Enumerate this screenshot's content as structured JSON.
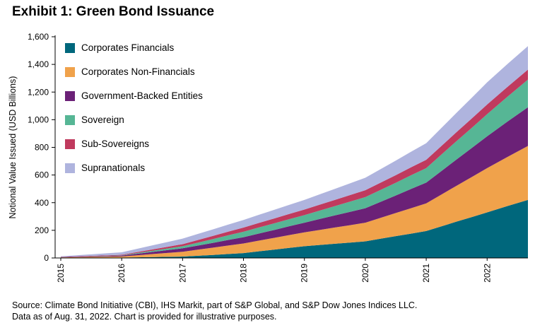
{
  "title": "Exhibit 1: Green Bond Issuance",
  "source_line1": "Source: Climate Bond Initiative (CBI), IHS Markit, part of S&P Global, and S&P Dow Jones Indices LLC.",
  "source_line2": "Data as of Aug. 31, 2022.  Chart is provided for illustrative purposes.",
  "chart_data": {
    "type": "area",
    "stacked": true,
    "title": "Exhibit 1: Green Bond Issuance",
    "ylabel": "Notional Value Issued (USD Billions)",
    "xlabel": "",
    "ylim": [
      0,
      1600
    ],
    "ytick_interval": 200,
    "legend_position": "top-left-inside",
    "grid": false,
    "xticks": [
      "2015",
      "2016",
      "2017",
      "2018",
      "2019",
      "2020",
      "2021",
      "2022"
    ],
    "xtick_values": [
      2015,
      2016,
      2017,
      2018,
      2019,
      2020,
      2021,
      2022
    ],
    "x": [
      2015,
      2015.25,
      2015.5,
      2015.75,
      2016,
      2016.25,
      2016.5,
      2016.75,
      2017,
      2017.25,
      2017.5,
      2017.75,
      2018,
      2018.25,
      2018.5,
      2018.75,
      2019,
      2019.25,
      2019.5,
      2019.75,
      2020,
      2020.25,
      2020.5,
      2020.75,
      2021,
      2021.25,
      2021.5,
      2021.75,
      2022,
      2022.33,
      2022.67
    ],
    "series": [
      {
        "name": "Corporates Financials",
        "color": "#00677C",
        "values": [
          1,
          1.5,
          2,
          2.5,
          3,
          4.75,
          6.5,
          8.25,
          10,
          16,
          22,
          29,
          35,
          48,
          60,
          73,
          85,
          94,
          103,
          111,
          120,
          139,
          158,
          176,
          195,
          229,
          263,
          296,
          330,
          375,
          420
        ]
      },
      {
        "name": "Corporates Non-Financials",
        "color": "#F0A24B",
        "values": [
          3,
          4.25,
          5.5,
          6.75,
          8,
          14.75,
          21.5,
          28.25,
          35,
          43.75,
          52.5,
          61.25,
          70,
          77.5,
          85,
          92.5,
          100,
          108.75,
          117.5,
          126.25,
          135,
          151,
          167,
          184,
          200,
          230,
          260,
          290,
          320,
          355,
          390
        ]
      },
      {
        "name": "Government-Backed Entities",
        "color": "#6B2177",
        "values": [
          2,
          3,
          4,
          5,
          6,
          10.75,
          15.5,
          20.25,
          25,
          30,
          35,
          40,
          45,
          51,
          57,
          64,
          70,
          78.75,
          87.5,
          96.25,
          105,
          116,
          127,
          139,
          150,
          170,
          190,
          210,
          230,
          255,
          280
        ]
      },
      {
        "name": "Sovereign",
        "color": "#56B695",
        "values": [
          0,
          0.5,
          1,
          1.5,
          2,
          5.25,
          8.5,
          11.75,
          15,
          21,
          27,
          34,
          40,
          44,
          48,
          51,
          55,
          61,
          67,
          74,
          80,
          86,
          92,
          99,
          105,
          119,
          133,
          146,
          160,
          180,
          200
        ]
      },
      {
        "name": "Sub-Sovereigns",
        "color": "#C03A5E",
        "values": [
          2,
          2.5,
          3,
          3.5,
          4,
          6.75,
          9.5,
          12.25,
          15,
          19,
          23,
          26,
          30,
          32.5,
          35,
          37.5,
          40,
          42.5,
          45,
          47.5,
          50,
          52.5,
          55,
          57.5,
          60,
          62.5,
          65,
          67.5,
          70,
          71,
          72
        ]
      },
      {
        "name": "Supranationals",
        "color": "#AFB4DE",
        "values": [
          4,
          7.5,
          11,
          14.5,
          18,
          23.5,
          29,
          34.5,
          40,
          43.75,
          47.5,
          51.25,
          55,
          58.75,
          62.5,
          66.25,
          70,
          75,
          80,
          85,
          90,
          97.5,
          105,
          112.5,
          120,
          130,
          140,
          150,
          160,
          165,
          170
        ]
      }
    ]
  }
}
